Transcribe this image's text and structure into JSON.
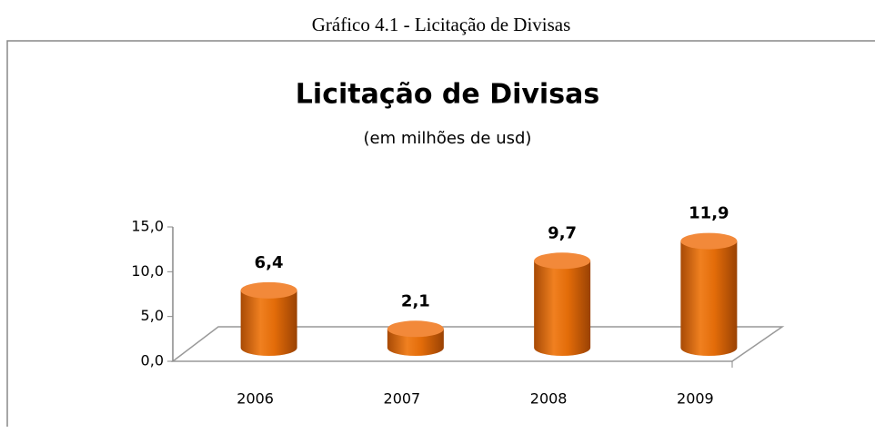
{
  "caption": "Gráfico 4.1 - Licitação de Divisas",
  "chart_data": {
    "type": "bar",
    "title": "Licitação de Divisas",
    "subtitle": "(em milhões de usd)",
    "categories": [
      "2006",
      "2007",
      "2008",
      "2009"
    ],
    "values": [
      6.4,
      2.1,
      9.7,
      11.9
    ],
    "value_labels": [
      "6,4",
      "2,1",
      "9,7",
      "11,9"
    ],
    "color": "#e36c09",
    "ylim": [
      0,
      15
    ],
    "yticks": [
      {
        "value": 0,
        "label": "0,0"
      },
      {
        "value": 5,
        "label": "5,0"
      },
      {
        "value": 10,
        "label": "10,0"
      },
      {
        "value": 15,
        "label": "15,0"
      }
    ],
    "grid": false
  }
}
